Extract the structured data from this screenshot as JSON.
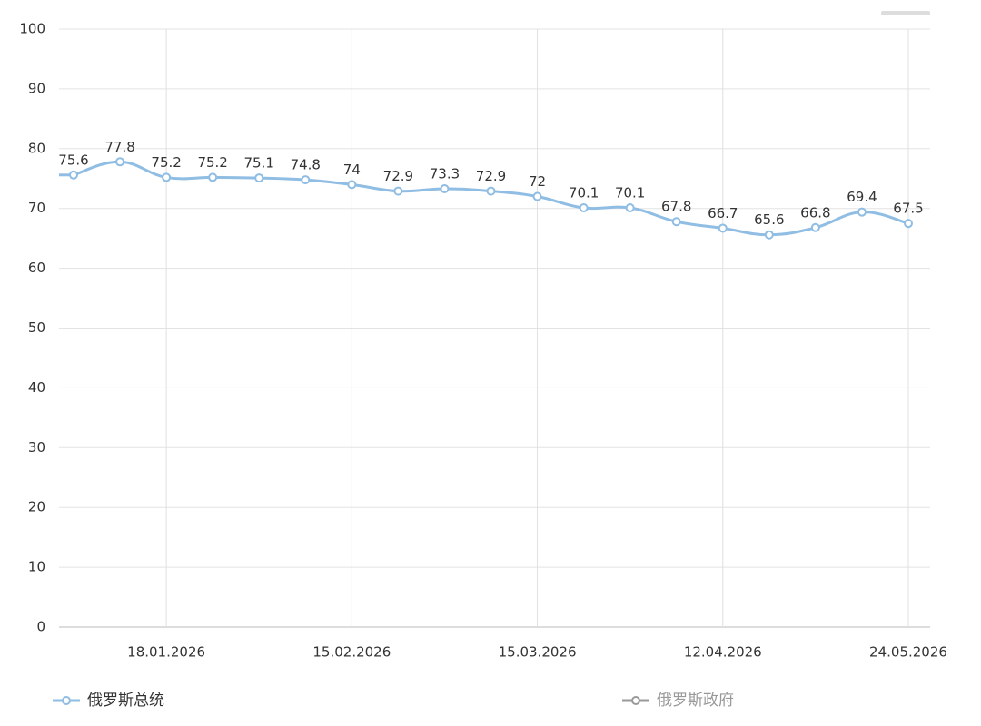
{
  "chart_data": {
    "type": "line",
    "categories": [
      null,
      null,
      "18.01.2026",
      null,
      null,
      null,
      "15.02.2026",
      null,
      null,
      null,
      "15.03.2026",
      null,
      null,
      null,
      "12.04.2026",
      null,
      null,
      null,
      "24.05.2026"
    ],
    "series": [
      {
        "name": "俄罗斯总统",
        "color": "#8fbde3",
        "values": [
          75.6,
          77.8,
          75.2,
          75.2,
          75.1,
          74.8,
          74,
          72.9,
          73.3,
          72.9,
          72,
          70.1,
          70.1,
          67.8,
          66.7,
          65.6,
          66.8,
          69.4,
          67.5
        ]
      },
      {
        "name": "俄罗斯政府",
        "color": "#9a9a9a",
        "values": [
          null,
          null,
          null,
          null,
          null,
          null,
          null,
          null,
          null,
          null,
          null,
          null,
          null,
          null,
          null,
          null,
          null,
          null,
          null
        ]
      }
    ],
    "ylim": [
      0,
      100
    ],
    "yticks": [
      0,
      10,
      20,
      30,
      40,
      50,
      60,
      70,
      80,
      90,
      100
    ],
    "grid": true,
    "data_labels": true
  }
}
